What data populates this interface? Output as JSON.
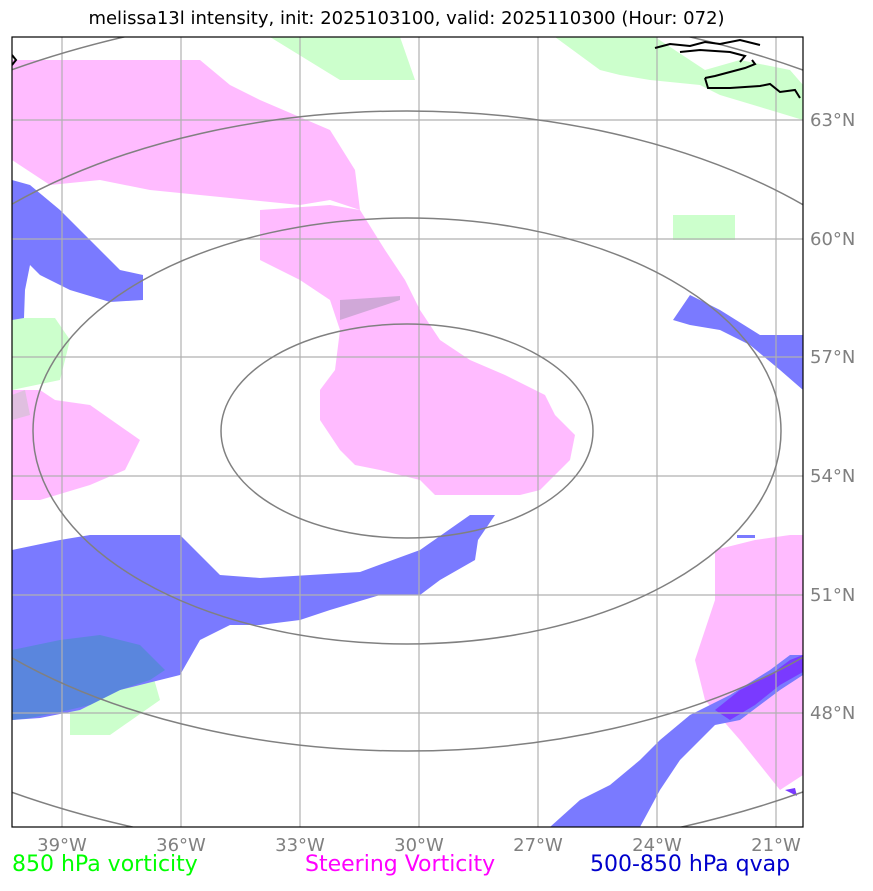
{
  "title": "melissa13l intensity, init: 2025103100, valid: 2025110300 (Hour: 072)",
  "map": {
    "lon_ticks": [
      "39°W",
      "36°W",
      "33°W",
      "30°W",
      "27°W",
      "24°W",
      "21°W"
    ],
    "lat_ticks": [
      "63°N",
      "60°N",
      "57°N",
      "54°N",
      "51°N",
      "48°N"
    ],
    "gridline_color": "#b0b0b0",
    "range_ring_color": "#808080",
    "coastline_color": "#000000"
  },
  "legend": {
    "left": {
      "label": "850 hPa vorticity",
      "color": "#00ff00"
    },
    "center": {
      "label": "Steering Vorticity",
      "color": "#ff00ff"
    },
    "right": {
      "label": "500-850 hPa qvap",
      "color": "#0000cc"
    }
  },
  "fields": {
    "vorticity_850_color": "#ccffcc",
    "steering_vorticity_color": "#ffbbff",
    "qvap_color": "#7a7aff"
  }
}
